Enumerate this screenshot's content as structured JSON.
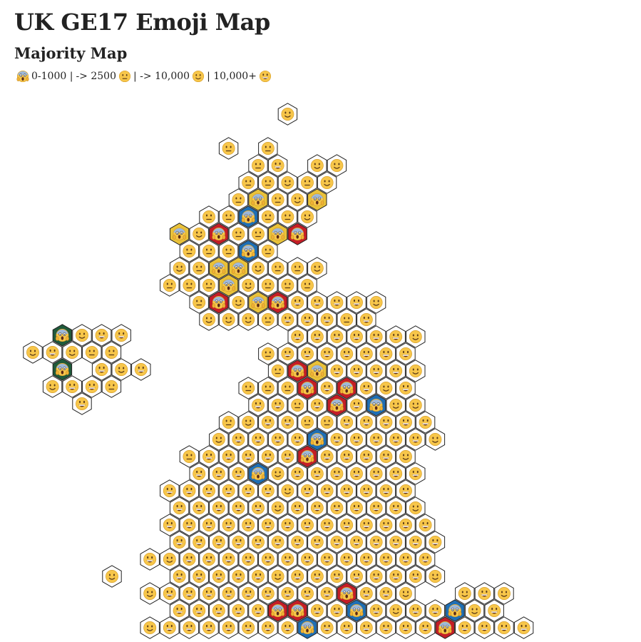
{
  "title": "UK GE17 Emoji Map",
  "subtitle": "Majority Map",
  "legend": {
    "items": [
      {
        "emoji": "scream",
        "text": "0-1000 |"
      },
      {
        "emoji": "neutral",
        "text": "-> 2500"
      },
      {
        "emoji": "",
        "text": "| -> 10,000"
      },
      {
        "emoji": "slight-smile",
        "text": "| 10,000+"
      },
      {
        "emoji": "grin",
        "text": ""
      }
    ]
  },
  "colors": {
    "face": "#f7c64a",
    "face_dark": "#d9a12b",
    "hex_stroke": "#222222",
    "conservative": "#1f6fb5",
    "labour": "#c41e27",
    "snp": "#e9c23a",
    "green": "#1a7a3c",
    "sinn_fein": "#1f5a3b",
    "dup": "#e9c23a"
  },
  "party_key": {
    "C": "conservative",
    "L": "labour",
    "S": "snp",
    "G": "green",
    "F": "sinn_fein",
    "D": "dup"
  },
  "map": {
    "note": "Each row: row index, first column index, string of cells. Cell codes: h=10,000+ grin, m=2500-10,000 slight smile, n=1000-2500 neutral, followed optionally by party letter for marginal 0-1000 seats (s=scream). '.' = gap.",
    "rows": [
      [
        0,
        14,
        "m"
      ],
      [
        2,
        11,
        "n.n"
      ],
      [
        3,
        12,
        "nh.mm"
      ],
      [
        4,
        12,
        "nnmnm"
      ],
      [
        5,
        11,
        "nsSnmsS"
      ],
      [
        6,
        10,
        "nnsCnnm"
      ],
      [
        7,
        8,
        "sSmsLnnsSsL"
      ],
      [
        8,
        9,
        "nnnsCn"
      ],
      [
        9,
        8,
        "mnsSsSmnnm"
      ],
      [
        10,
        8,
        "nnnsSmnnn"
      ],
      [
        11,
        9,
        "nsLmsSsLhhhhm"
      ],
      [
        12,
        10,
        "mmmnhhhnh"
      ],
      [
        13,
        14,
        "hhhhhhm"
      ],
      [
        14,
        13,
        "nhhhhhhh"
      ],
      [
        15,
        13,
        "nsLsShhhhm"
      ],
      [
        16,
        12,
        "nnnsLhsLhmh"
      ],
      [
        17,
        12,
        "hhnhsLhsCmm"
      ],
      [
        18,
        11,
        "nmhhnnhhhhh"
      ],
      [
        19,
        10,
        "mhhhhsChhhhhm"
      ],
      [
        20,
        9,
        "nhhhhhsLhhhhm"
      ],
      [
        21,
        9,
        "hhhsCmhhhhhhh"
      ],
      [
        22,
        8,
        "hhhhhhmhhhhhh"
      ],
      [
        23,
        8,
        "hhhhhmhhhhhhm"
      ],
      [
        24,
        8,
        "hhhhhhhhhhhhhh"
      ],
      [
        25,
        8,
        "hhhhhhhhhhhhhh"
      ],
      [
        26,
        7,
        "hmhhhhhhhhhhhhh"
      ],
      [
        27,
        8,
        "hhhhhmhhhhhhhm"
      ],
      [
        28,
        7,
        "mhhhhhhhhhsLhhm..mhm"
      ],
      [
        29,
        8,
        "hhhhhsLsLhhsChmhhsCmh"
      ],
      [
        30,
        7,
        "mhhhhhhhsChhhhhhsLhhhh"
      ],
      [
        31,
        6,
        "sGmhhsChhhhhhhhhhhhhhsLm"
      ],
      [
        32,
        9,
        "hhhhhhhhhhhhsChhhhh"
      ]
    ],
    "ni_rows": [
      [
        0,
        1,
        "sFmhh"
      ],
      [
        1,
        0,
        "mhmnn"
      ],
      [
        2,
        1,
        "sF.hmh"
      ],
      [
        3,
        1,
        "mhhn"
      ],
      [
        4,
        2,
        "h"
      ]
    ],
    "extra": [
      {
        "r": 28,
        "c": 4,
        "code": "m"
      }
    ]
  }
}
